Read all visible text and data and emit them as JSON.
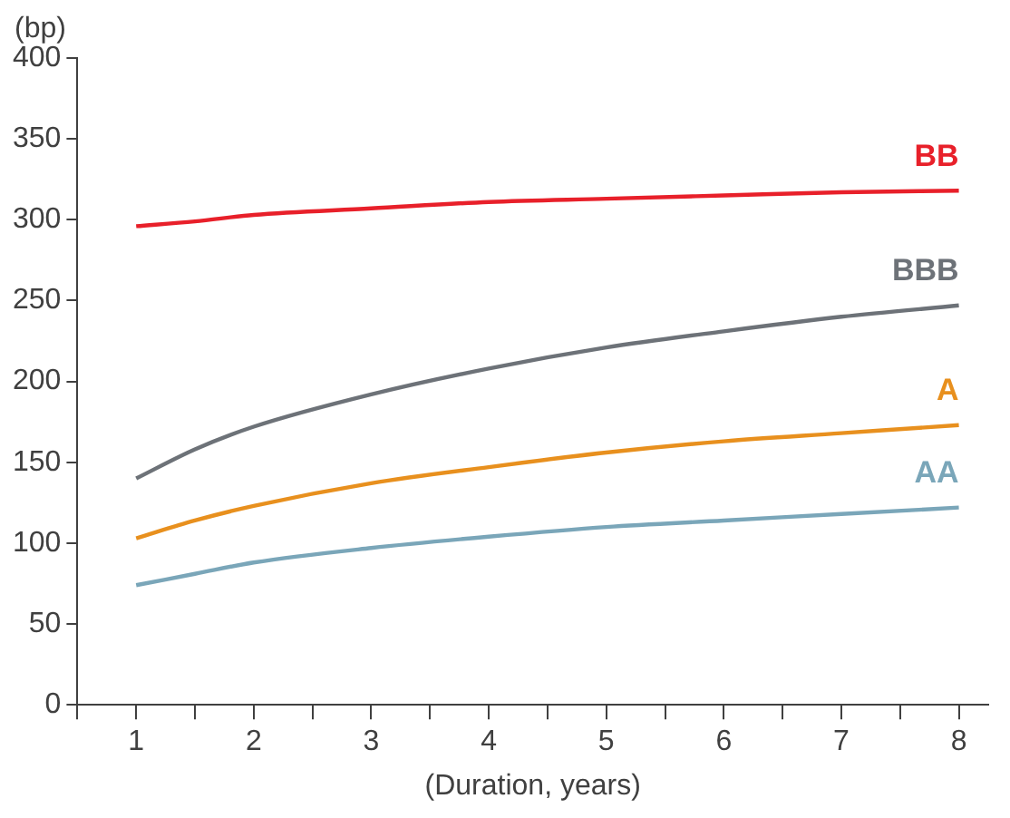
{
  "chart_data": {
    "type": "line",
    "xlabel": "(Duration, years)",
    "ylabel": "(bp)",
    "x": [
      1,
      1.5,
      2,
      3,
      4,
      5,
      6,
      7,
      8
    ],
    "series": [
      {
        "name": "BB",
        "color": "#e8202a",
        "values": [
          296,
          299,
          303,
          307,
          311,
          313,
          315,
          317,
          318
        ]
      },
      {
        "name": "BBB",
        "color": "#6d7278",
        "values": [
          140,
          158,
          172,
          192,
          208,
          221,
          231,
          240,
          247
        ]
      },
      {
        "name": "A",
        "color": "#e8901e",
        "values": [
          103,
          114,
          123,
          137,
          147,
          156,
          163,
          168,
          173
        ]
      },
      {
        "name": "AA",
        "color": "#7aa6b9",
        "values": [
          74,
          81,
          88,
          97,
          104,
          110,
          114,
          118,
          122
        ]
      }
    ],
    "xlim": [
      0.5,
      8.25
    ],
    "xticks": [
      {
        "value": 0.5,
        "label": null
      },
      1,
      {
        "value": 1.5,
        "label": null
      },
      2,
      {
        "value": 2.5,
        "label": null
      },
      3,
      {
        "value": 3.5,
        "label": null
      },
      4,
      {
        "value": 4.5,
        "label": null
      },
      5,
      {
        "value": 5.5,
        "label": null
      },
      6,
      {
        "value": 6.5,
        "label": null
      },
      7,
      {
        "value": 7.5,
        "label": null
      },
      8
    ],
    "ylim": [
      0,
      400
    ],
    "yticks": [
      0,
      50,
      100,
      150,
      200,
      250,
      300,
      350,
      400
    ],
    "grid": false,
    "legend": false,
    "marker": "none",
    "line_style": "solid"
  }
}
